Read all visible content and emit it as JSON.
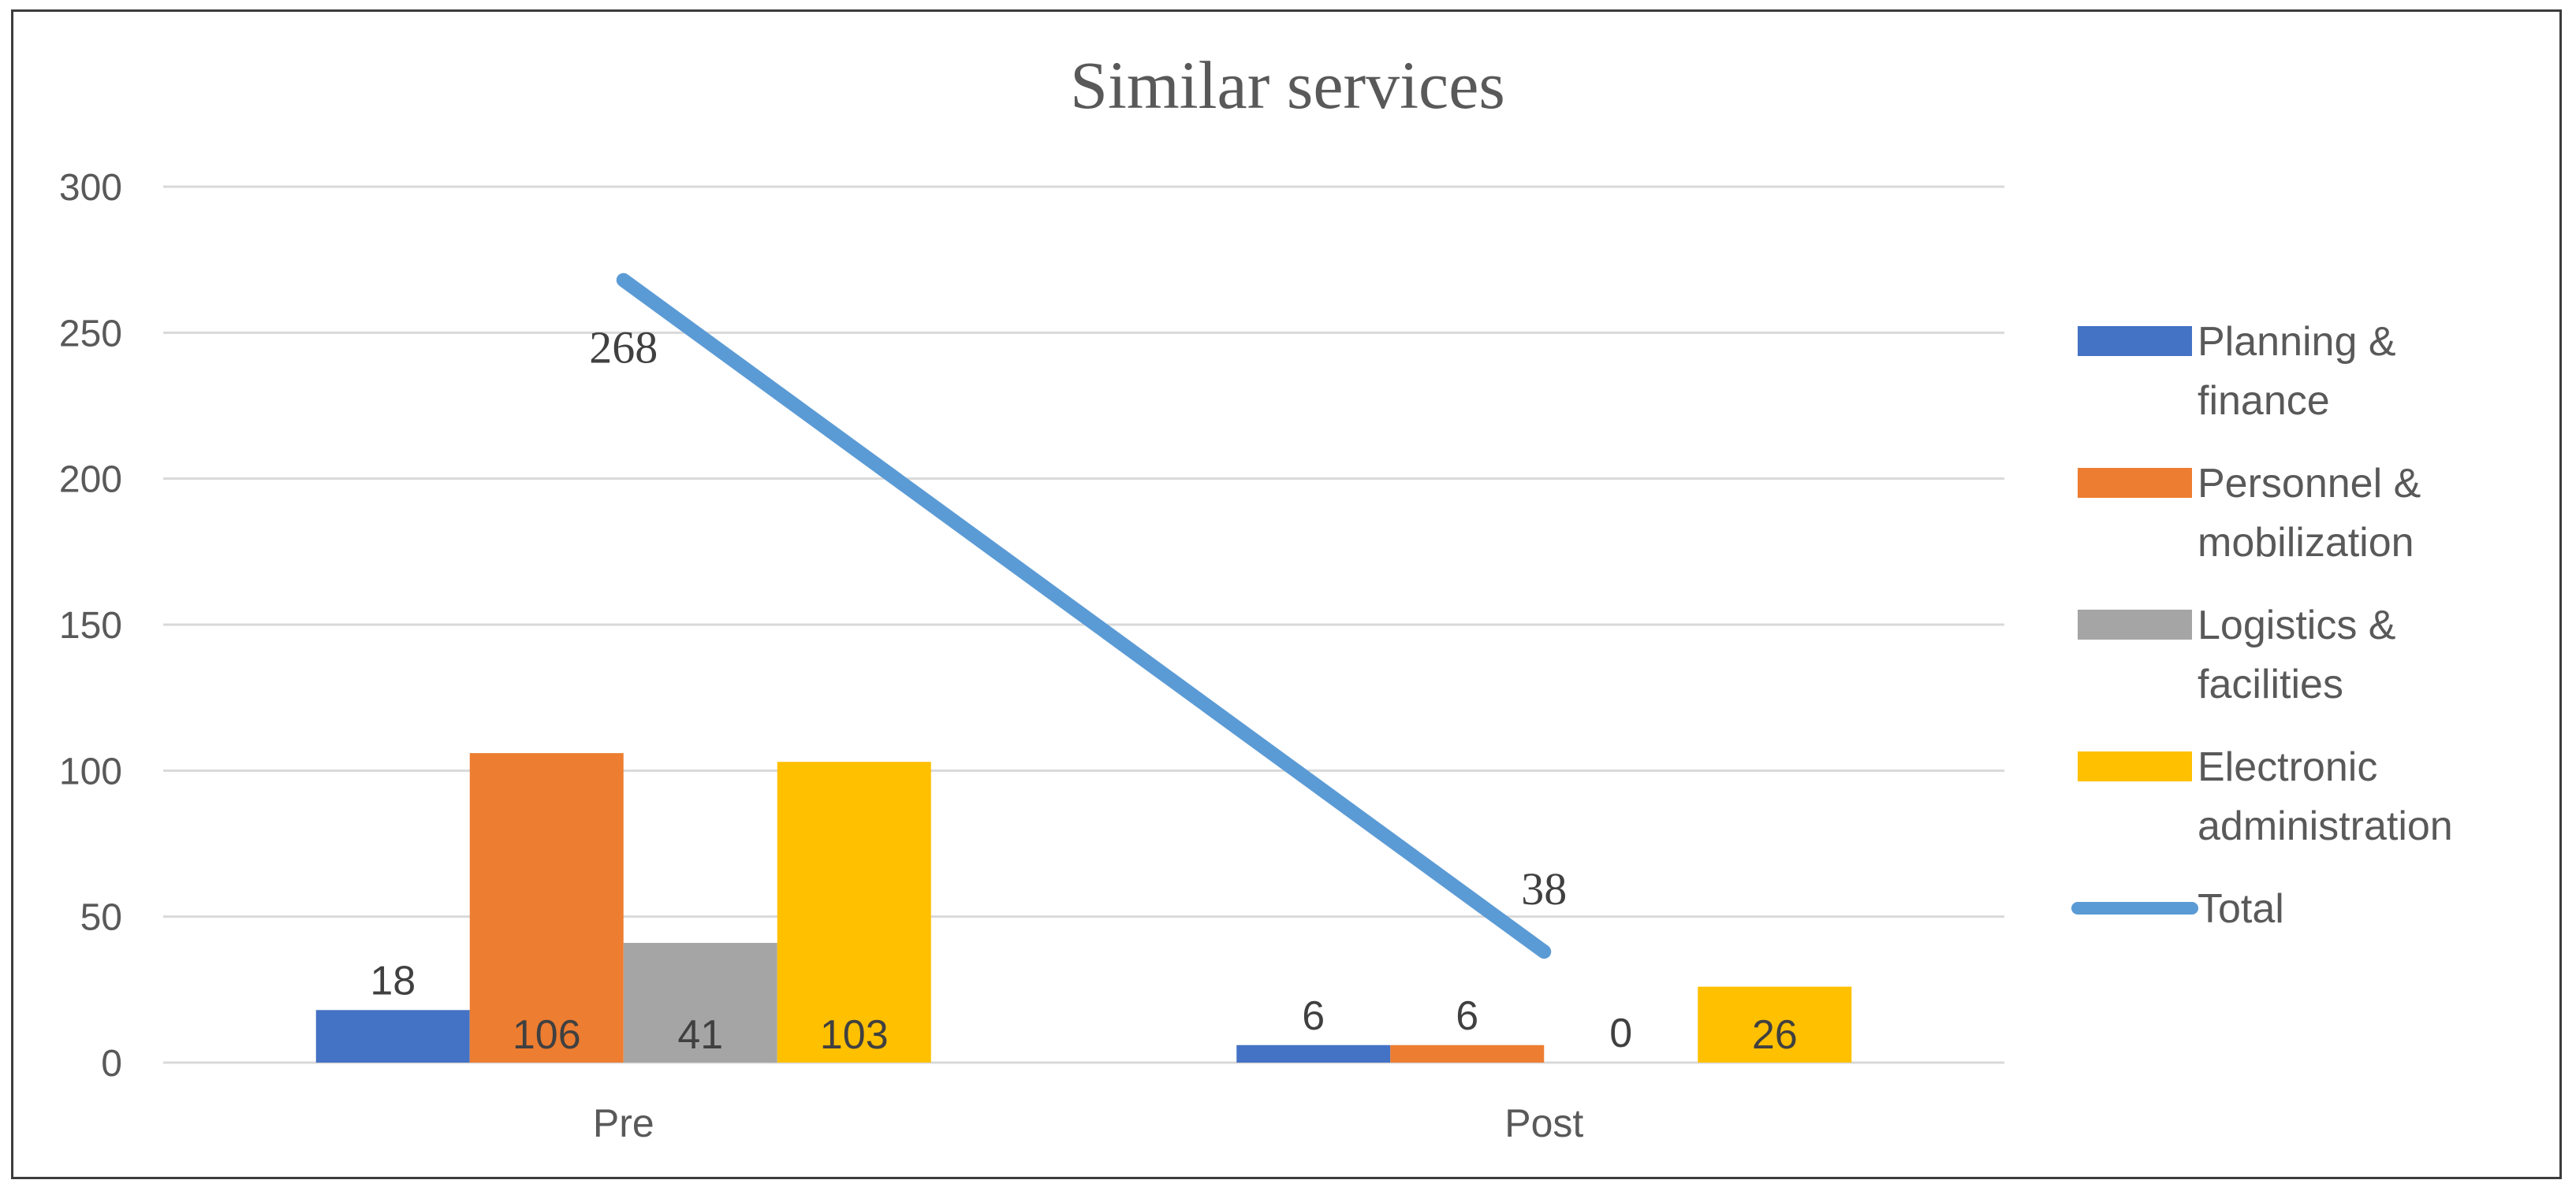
{
  "chart_data": {
    "type": "bar",
    "title": "Similar services",
    "xlabel": "",
    "ylabel": "",
    "categories": [
      "Pre",
      "Post"
    ],
    "ylim": [
      0,
      300
    ],
    "yticks": [
      0,
      50,
      100,
      150,
      200,
      250,
      300
    ],
    "grid": true,
    "legend_position": "right",
    "series": [
      {
        "name": "Planning & finance",
        "values": [
          18,
          6
        ],
        "color": "#4472C4",
        "type": "bar"
      },
      {
        "name": "Personnel & mobilization",
        "values": [
          106,
          6
        ],
        "color": "#ED7D31",
        "type": "bar"
      },
      {
        "name": "Logistics & facilities",
        "values": [
          41,
          0
        ],
        "color": "#A5A5A5",
        "type": "bar"
      },
      {
        "name": "Electronic administration",
        "values": [
          103,
          26
        ],
        "color": "#FFC000",
        "type": "bar"
      },
      {
        "name": "Total",
        "values": [
          268,
          38
        ],
        "color": "#5B9BD5",
        "type": "line"
      }
    ]
  }
}
